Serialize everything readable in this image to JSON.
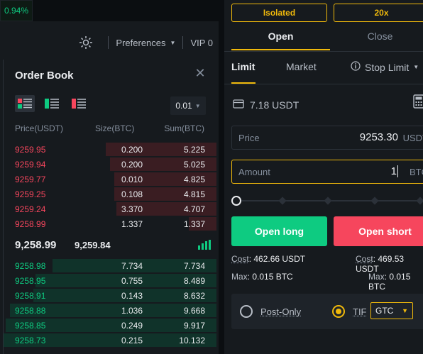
{
  "top": {
    "change_pct": "0.94%"
  },
  "prefs": {
    "preferences_label": "Preferences",
    "vip_label": "VIP 0"
  },
  "orderbook": {
    "title": "Order Book",
    "precision": "0.01",
    "col_price": "Price(USDT)",
    "col_size": "Size(BTC)",
    "col_sum": "Sum(BTC)",
    "asks": [
      {
        "price": "9259.95",
        "size": "0.200",
        "sum": "5.225",
        "depth": 0.52
      },
      {
        "price": "9259.94",
        "size": "0.200",
        "sum": "5.025",
        "depth": 0.5
      },
      {
        "price": "9259.77",
        "size": "0.010",
        "sum": "4.825",
        "depth": 0.48
      },
      {
        "price": "9259.25",
        "size": "0.108",
        "sum": "4.815",
        "depth": 0.48
      },
      {
        "price": "9259.24",
        "size": "3.370",
        "sum": "4.707",
        "depth": 0.47
      },
      {
        "price": "9258.99",
        "size": "1.337",
        "sum": "1.337",
        "depth": 0.13
      }
    ],
    "last_price": "9,258.99",
    "mark_price": "9,259.84",
    "bids": [
      {
        "price": "9258.98",
        "size": "7.734",
        "sum": "7.734",
        "depth": 0.77
      },
      {
        "price": "9258.95",
        "size": "0.755",
        "sum": "8.489",
        "depth": 0.85
      },
      {
        "price": "9258.91",
        "size": "0.143",
        "sum": "8.632",
        "depth": 0.86
      },
      {
        "price": "9258.88",
        "size": "1.036",
        "sum": "9.668",
        "depth": 0.97
      },
      {
        "price": "9258.85",
        "size": "0.249",
        "sum": "9.917",
        "depth": 0.99
      },
      {
        "price": "9258.73",
        "size": "0.215",
        "sum": "10.132",
        "depth": 1.0
      }
    ]
  },
  "trade": {
    "margin_mode": "Isolated",
    "leverage": "20x",
    "tab_open": "Open",
    "tab_close": "Close",
    "type_limit": "Limit",
    "type_market": "Market",
    "type_stop": "Stop Limit",
    "available": "7.18 USDT",
    "price_label": "Price",
    "price_value": "9253.30",
    "price_unit": "USDT",
    "amount_label": "Amount",
    "amount_value": "1",
    "amount_unit": "BTC",
    "open_long": "Open long",
    "open_short": "Open short",
    "cost_label": "Cost",
    "cost_long": ": 462.66 USDT",
    "cost_short": ": 469.53 USDT",
    "max_label": "Max",
    "max_long": ": 0.015 BTC",
    "max_short": ": 0.015 BTC",
    "post_only": "Post-Only",
    "tif_label": "TIF",
    "tif_value": "GTC"
  },
  "colors": {
    "green": "#0ecb81",
    "red": "#f6465d",
    "accent": "#f0b90b"
  }
}
